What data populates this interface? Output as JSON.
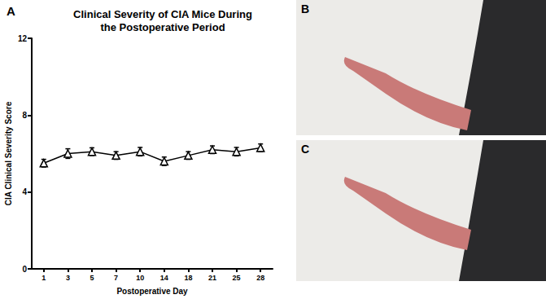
{
  "chart_data": {
    "type": "line",
    "panel_label": "A",
    "title": "Clinical Severity of CIA Mice During\nthe Postoperative Period",
    "x_label": "Postoperative Day",
    "y_label": "CIA Clinical Severity Score",
    "categories": [
      1,
      3,
      5,
      7,
      10,
      14,
      18,
      21,
      25,
      28
    ],
    "values": [
      5.5,
      6.0,
      6.1,
      5.9,
      6.1,
      5.6,
      5.9,
      6.2,
      6.1,
      6.3
    ],
    "errors": [
      0.2,
      0.25,
      0.2,
      0.2,
      0.22,
      0.22,
      0.2,
      0.2,
      0.22,
      0.2
    ],
    "ylim": [
      0,
      12
    ],
    "yticks": [
      0,
      4,
      8,
      12
    ],
    "color": "#000000",
    "marker": "triangle",
    "grid": false
  },
  "photos": [
    {
      "label": "B"
    },
    {
      "label": "C"
    }
  ]
}
